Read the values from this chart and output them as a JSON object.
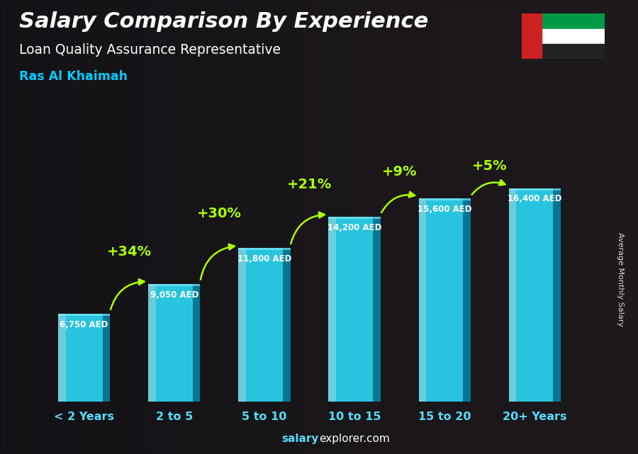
{
  "title": "Salary Comparison By Experience",
  "subtitle": "Loan Quality Assurance Representative",
  "location": "Ras Al Khaimah",
  "categories": [
    "< 2 Years",
    "2 to 5",
    "5 to 10",
    "10 to 15",
    "15 to 20",
    "20+ Years"
  ],
  "values": [
    6750,
    9050,
    11800,
    14200,
    15600,
    16400
  ],
  "value_labels": [
    "6,750 AED",
    "9,050 AED",
    "11,800 AED",
    "14,200 AED",
    "15,600 AED",
    "16,400 AED"
  ],
  "pct_changes": [
    "+34%",
    "+30%",
    "+21%",
    "+9%",
    "+5%"
  ],
  "bar_main": "#2ad4f0",
  "bar_left_highlight": "#7aeeff",
  "bar_right_shadow": "#0088aa",
  "bar_top_light": "#55ddff",
  "pct_color": "#aaff00",
  "title_color": "#ffffff",
  "subtitle_color": "#ffffff",
  "location_color": "#00ccff",
  "value_color": "#ffffff",
  "bg_color": "#1e1e28",
  "ylabel": "Average Monthly Salary",
  "footer_salary": "salary",
  "footer_rest": "explorer.com",
  "ylim_max": 19000,
  "flag_green": "#009a44",
  "flag_white": "#ffffff",
  "flag_black": "#1a1a1a",
  "flag_red": "#cc2222"
}
